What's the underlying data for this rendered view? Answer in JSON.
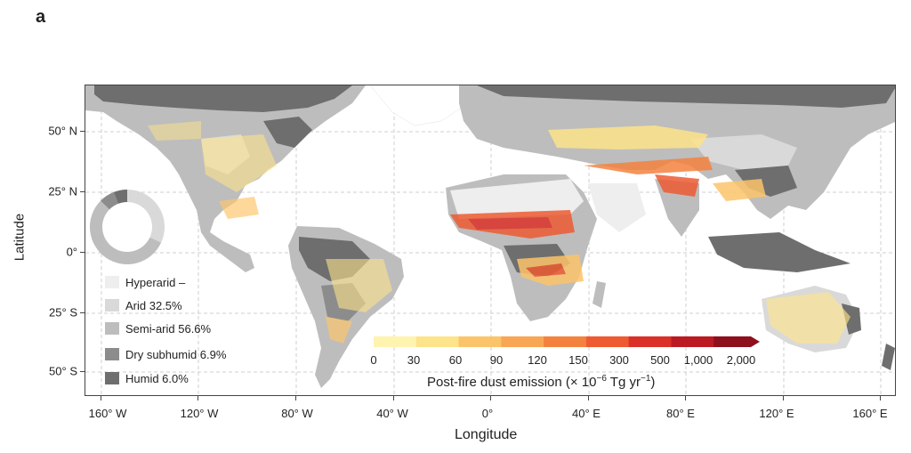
{
  "panel_label": "a",
  "axes": {
    "xlabel": "Longitude",
    "ylabel": "Latitude",
    "x_ticks": [
      "160° W",
      "120° W",
      "80° W",
      "40° W",
      "0°",
      "40° E",
      "80° E",
      "120° E",
      "160° E"
    ],
    "y_ticks": [
      "50° N",
      "25° N",
      "0°",
      "25° S",
      "50° S"
    ]
  },
  "legend": {
    "items": [
      {
        "label": "Hyperarid –",
        "color": "#eeeeee"
      },
      {
        "label": "Arid 32.5%",
        "color": "#d9d9d9"
      },
      {
        "label": "Semi-arid 56.6%",
        "color": "#bdbdbd"
      },
      {
        "label": "Dry subhumid 6.9%",
        "color": "#8c8c8c"
      },
      {
        "label": "Humid 6.0%",
        "color": "#6e6e6e"
      }
    ]
  },
  "donut_shares": [
    {
      "name": "Arid",
      "value": 32.5,
      "color": "#d9d9d9"
    },
    {
      "name": "Semi-arid",
      "value": 56.6,
      "color": "#bdbdbd"
    },
    {
      "name": "Dry subhumid",
      "value": 6.9,
      "color": "#8c8c8c"
    },
    {
      "name": "Humid",
      "value": 6.0,
      "color": "#6e6e6e"
    }
  ],
  "colorbar": {
    "labels": [
      "0",
      "30",
      "60",
      "90",
      "120",
      "150",
      "300",
      "500",
      "1,000",
      "2,000"
    ],
    "colors": [
      "#fff3b0",
      "#fde38a",
      "#fcc46a",
      "#f9a654",
      "#f4823f",
      "#ee5a32",
      "#db3028",
      "#bb1a23",
      "#8e0f1e"
    ],
    "title_prefix": "Post-fire dust emission (× 10",
    "title_exp1": "−6",
    "title_mid": " Tg yr",
    "title_exp2": "−1",
    "title_suffix": ")"
  },
  "colors": {
    "land_humid": "#6e6e6e",
    "land_semiarid": "#bdbdbd",
    "land_arid": "#d9d9d9",
    "land_hyperarid": "#eeeeee",
    "emission_low": "#fde38a",
    "emission_high": "#db3028"
  }
}
